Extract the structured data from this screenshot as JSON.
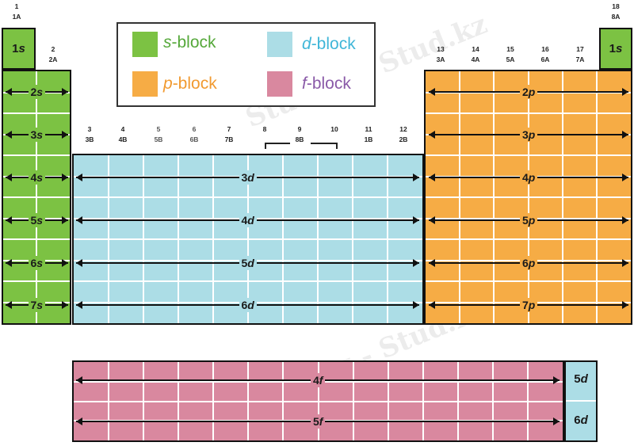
{
  "groups": {
    "g1": {
      "num": "1",
      "old": "1A"
    },
    "g2": {
      "num": "2",
      "old": "2A"
    },
    "g3": {
      "num": "3",
      "old": "3B"
    },
    "g4": {
      "num": "4",
      "old": "4B"
    },
    "g5": {
      "num": "5",
      "old": "5B"
    },
    "g6": {
      "num": "6",
      "old": "6B"
    },
    "g7": {
      "num": "7",
      "old": "7B"
    },
    "g8": {
      "num": "8"
    },
    "g9": {
      "num": "9",
      "old": "8B"
    },
    "g10": {
      "num": "10"
    },
    "g11": {
      "num": "11",
      "old": "1B"
    },
    "g12": {
      "num": "12",
      "old": "2B"
    },
    "g13": {
      "num": "13",
      "old": "3A"
    },
    "g14": {
      "num": "14",
      "old": "4A"
    },
    "g15": {
      "num": "15",
      "old": "5A"
    },
    "g16": {
      "num": "16",
      "old": "6A"
    },
    "g17": {
      "num": "17",
      "old": "7A"
    },
    "g18": {
      "num": "18",
      "old": "8A"
    }
  },
  "legend": {
    "s": {
      "letter": "s",
      "text": "-block",
      "color": "#7cc243",
      "text_color": "#55a83a"
    },
    "p": {
      "letter": "p",
      "text": "-block",
      "color": "#f6ac45",
      "text_color": "#f19a30"
    },
    "d": {
      "letter": "d",
      "text": "-block",
      "color": "#acdde6",
      "text_color": "#3fb6d8"
    },
    "f": {
      "letter": "f",
      "text": "-block",
      "color": "#d9889f",
      "text_color": "#8a5aa8"
    }
  },
  "s_block": {
    "h1": {
      "n": "1",
      "l": "s"
    },
    "he": {
      "n": "1",
      "l": "s"
    },
    "rows": [
      {
        "n": "2",
        "l": "s"
      },
      {
        "n": "3",
        "l": "s"
      },
      {
        "n": "4",
        "l": "s"
      },
      {
        "n": "5",
        "l": "s"
      },
      {
        "n": "6",
        "l": "s"
      },
      {
        "n": "7",
        "l": "s"
      }
    ]
  },
  "d_block": {
    "rows": [
      {
        "n": "3",
        "l": "d"
      },
      {
        "n": "4",
        "l": "d"
      },
      {
        "n": "5",
        "l": "d"
      },
      {
        "n": "6",
        "l": "d"
      }
    ]
  },
  "p_block": {
    "rows": [
      {
        "n": "2",
        "l": "p"
      },
      {
        "n": "3",
        "l": "p"
      },
      {
        "n": "4",
        "l": "p"
      },
      {
        "n": "5",
        "l": "p"
      },
      {
        "n": "6",
        "l": "p"
      },
      {
        "n": "7",
        "l": "p"
      }
    ]
  },
  "f_block": {
    "rows": [
      {
        "n": "4",
        "l": "f"
      },
      {
        "n": "5",
        "l": "f"
      }
    ],
    "side": [
      {
        "n": "5",
        "l": "d"
      },
      {
        "n": "6",
        "l": "d"
      }
    ]
  },
  "watermark": "Stud.kz - Stud.kz"
}
